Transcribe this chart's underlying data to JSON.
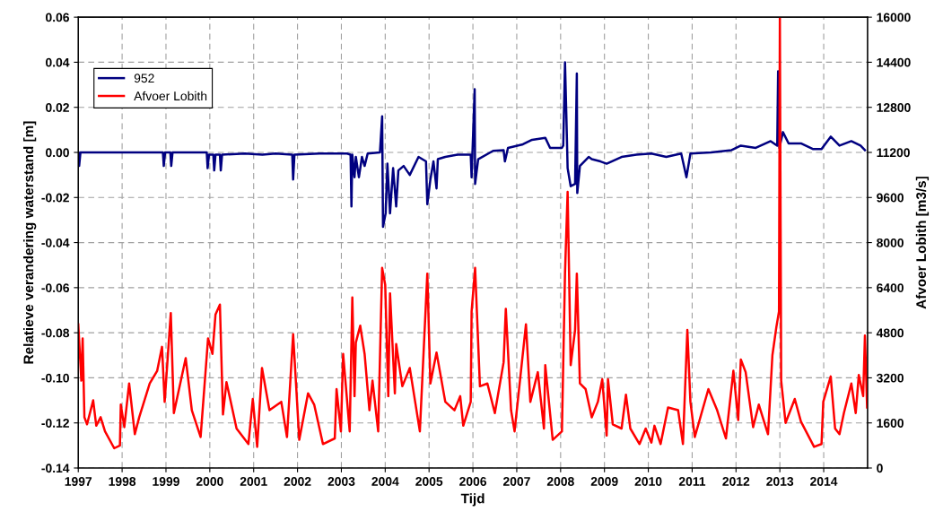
{
  "chart_data": {
    "type": "line",
    "xlabel": "Tijd",
    "ylabel": "Relatieve verandering waterstand [m]",
    "y2label": "Afvoer Lobith [m3/s]",
    "xlim": [
      1997,
      2015
    ],
    "xticks": [
      1997,
      1998,
      1999,
      2000,
      2001,
      2002,
      2003,
      2004,
      2005,
      2006,
      2007,
      2008,
      2009,
      2010,
      2011,
      2012,
      2013,
      2014
    ],
    "ylim": [
      -0.14,
      0.06
    ],
    "yticks": [
      {
        "value": -0.14,
        "label": "-0.14"
      },
      {
        "value": -0.12,
        "label": "-0.12"
      },
      {
        "value": -0.1,
        "label": "-0.10"
      },
      {
        "value": -0.08,
        "label": "-0.08"
      },
      {
        "value": -0.06,
        "label": "-0.06"
      },
      {
        "value": -0.04,
        "label": "-0.04"
      },
      {
        "value": -0.02,
        "label": "-0.02"
      },
      {
        "value": 0,
        "label": "0.00"
      },
      {
        "value": 0.02,
        "label": "0.02"
      },
      {
        "value": 0.04,
        "label": "0.04"
      },
      {
        "value": 0.06,
        "label": "0.06"
      }
    ],
    "y2lim": [
      0,
      16000
    ],
    "y2ticks": [
      0,
      1600,
      3200,
      4800,
      6400,
      8000,
      9600,
      11200,
      12800,
      14400,
      16000
    ],
    "grid": true,
    "legend": "top left",
    "marker": "none",
    "line_style": "solid",
    "series": [
      {
        "name": "952",
        "color": "#000080",
        "x": [
          1997.0,
          1997.02,
          1997.05,
          1998.93,
          1998.95,
          1998.98,
          1999.1,
          1999.12,
          1999.15,
          1999.93,
          1999.95,
          1999.98,
          2000.08,
          2000.1,
          2000.13,
          2000.23,
          2000.25,
          2000.28,
          2000.8,
          2001.2,
          2001.5,
          2001.88,
          2001.9,
          2001.93,
          2002.5,
          2002.8,
          2003.13,
          2003.21,
          2003.23,
          2003.25,
          2003.3,
          2003.33,
          2003.4,
          2003.47,
          2003.53,
          2003.6,
          2003.88,
          2003.93,
          2003.95,
          2004.01,
          2004.05,
          2004.11,
          2004.18,
          2004.25,
          2004.3,
          2004.42,
          2004.56,
          2004.76,
          2004.93,
          2004.96,
          2005.03,
          2005.1,
          2005.17,
          2005.2,
          2005.37,
          2005.65,
          2005.95,
          2005.97,
          2006.04,
          2006.05,
          2006.12,
          2006.46,
          2006.7,
          2006.73,
          2006.8,
          2007.14,
          2007.35,
          2007.65,
          2007.76,
          2008.03,
          2008.06,
          2008.1,
          2008.13,
          2008.16,
          2008.23,
          2008.33,
          2008.37,
          2008.38,
          2008.44,
          2008.64,
          2008.71,
          2008.91,
          2009.05,
          2009.39,
          2009.73,
          2010.07,
          2010.41,
          2010.75,
          2010.87,
          2010.96,
          2011.43,
          2011.9,
          2012.11,
          2012.45,
          2012.79,
          2012.94,
          2012.96,
          2012.99,
          2013.07,
          2013.2,
          2013.48,
          2013.75,
          2013.95,
          2014.16,
          2014.36,
          2014.63,
          2014.84,
          2014.94
        ],
        "values": [
          0,
          -0.006,
          0,
          0,
          -0.006,
          0,
          0,
          -0.006,
          0,
          0,
          -0.007,
          -0.001,
          -0.001,
          -0.008,
          -0.001,
          -0.001,
          -0.008,
          -0.001,
          -0.0005,
          -0.001,
          -0.0005,
          -0.001,
          -0.012,
          -0.001,
          -0.0005,
          -0.0005,
          -0.0005,
          -0.001,
          -0.024,
          -0.001,
          -0.011,
          -0.002,
          -0.011,
          -0.002,
          -0.006,
          -0.0005,
          0,
          0.016,
          -0.033,
          -0.027,
          -0.005,
          -0.027,
          -0.007,
          -0.024,
          -0.008,
          -0.006,
          -0.01,
          -0.002,
          -0.004,
          -0.023,
          -0.012,
          -0.004,
          -0.016,
          -0.003,
          -0.002,
          -0.001,
          -0.001,
          -0.011,
          0.028,
          -0.014,
          -0.003,
          0.0007,
          0.001,
          -0.004,
          0.002,
          0.0036,
          0.0056,
          0.0065,
          0.002,
          0.002,
          0.003,
          0.04,
          0.017,
          -0.007,
          -0.015,
          -0.014,
          0.035,
          -0.018,
          -0.006,
          -0.002,
          -0.003,
          -0.004,
          -0.005,
          -0.002,
          -0.001,
          -0.0005,
          -0.002,
          -0.0005,
          -0.011,
          -0.0005,
          0,
          0.001,
          0.003,
          0.002,
          0.005,
          0.003,
          0.036,
          0.002,
          0.009,
          0.004,
          0.004,
          0.0015,
          0.0015,
          0.007,
          0.003,
          0.005,
          0.003,
          0.001
        ]
      },
      {
        "name": "Afvoer Lobith",
        "color": "#ff0000",
        "axis": "y2",
        "x": [
          1997.0,
          1997.07,
          1997.1,
          1997.14,
          1997.2,
          1997.34,
          1997.41,
          1997.51,
          1997.61,
          1997.82,
          1997.95,
          1997.97,
          1998.05,
          1998.16,
          1998.29,
          1998.39,
          1998.63,
          1998.8,
          1998.91,
          1998.97,
          1999.11,
          1999.18,
          1999.45,
          1999.59,
          1999.79,
          1999.96,
          2000.06,
          2000.13,
          2000.23,
          2000.3,
          2000.38,
          2000.61,
          2000.88,
          2000.98,
          2001.08,
          2001.19,
          2001.36,
          2001.63,
          2001.76,
          2001.9,
          2002.04,
          2002.24,
          2002.38,
          2002.58,
          2002.85,
          2002.89,
          2002.99,
          2003.04,
          2003.19,
          2003.25,
          2003.3,
          2003.33,
          2003.43,
          2003.53,
          2003.64,
          2003.71,
          2003.84,
          2003.93,
          2004.0,
          2004.07,
          2004.11,
          2004.22,
          2004.25,
          2004.39,
          2004.56,
          2004.79,
          2004.96,
          2005.03,
          2005.17,
          2005.37,
          2005.58,
          2005.71,
          2005.78,
          2005.95,
          2005.97,
          2006.05,
          2006.16,
          2006.33,
          2006.5,
          2006.7,
          2006.75,
          2006.87,
          2006.95,
          2007.21,
          2007.31,
          2007.48,
          2007.62,
          2007.65,
          2007.82,
          2008.03,
          2008.1,
          2008.16,
          2008.23,
          2008.33,
          2008.37,
          2008.44,
          2008.57,
          2008.71,
          2008.85,
          2008.95,
          2009.05,
          2009.08,
          2009.19,
          2009.39,
          2009.49,
          2009.59,
          2009.8,
          2009.94,
          2010.07,
          2010.14,
          2010.28,
          2010.45,
          2010.68,
          2010.79,
          2010.89,
          2010.96,
          2011.06,
          2011.37,
          2011.57,
          2011.77,
          2011.94,
          2012.05,
          2012.11,
          2012.22,
          2012.39,
          2012.52,
          2012.73,
          2012.83,
          2012.92,
          2012.98,
          2013.0,
          2013.03,
          2013.13,
          2013.34,
          2013.48,
          2013.78,
          2013.95,
          2013.99,
          2014.16,
          2014.26,
          2014.36,
          2014.46,
          2014.63,
          2014.73,
          2014.8,
          2014.9,
          2014.94,
          2014.99
        ],
        "values": [
          5100,
          3100,
          4600,
          1800,
          1550,
          2400,
          1500,
          1800,
          1300,
          700,
          800,
          2250,
          1450,
          3000,
          1200,
          1800,
          3000,
          3450,
          4300,
          2350,
          5500,
          1950,
          3900,
          2050,
          1100,
          4600,
          4050,
          5450,
          5800,
          1900,
          3050,
          1400,
          850,
          2450,
          750,
          3550,
          2050,
          2350,
          1100,
          4750,
          1000,
          2650,
          2250,
          850,
          1050,
          2800,
          1300,
          4050,
          1300,
          6050,
          2550,
          4450,
          5050,
          4050,
          2050,
          3100,
          1300,
          7100,
          6500,
          2550,
          6200,
          2650,
          4400,
          2900,
          3550,
          1300,
          6900,
          3000,
          4100,
          2350,
          2050,
          2550,
          1500,
          2350,
          5550,
          7100,
          2900,
          3000,
          1950,
          3750,
          5650,
          2050,
          1300,
          5100,
          2350,
          3400,
          1400,
          3650,
          1000,
          1300,
          6900,
          9800,
          3650,
          4900,
          6900,
          3000,
          2800,
          1800,
          2350,
          3150,
          1150,
          3150,
          1550,
          1400,
          2600,
          1400,
          850,
          1400,
          900,
          1500,
          850,
          2150,
          2050,
          850,
          4900,
          2350,
          1100,
          2800,
          2050,
          1050,
          3450,
          1700,
          3850,
          3400,
          1450,
          2250,
          1200,
          4000,
          5000,
          5550,
          16000,
          3100,
          1600,
          2450,
          1650,
          750,
          850,
          2350,
          3250,
          1400,
          1200,
          1950,
          3000,
          1950,
          3300,
          2550,
          4700,
          2150
        ]
      }
    ]
  }
}
